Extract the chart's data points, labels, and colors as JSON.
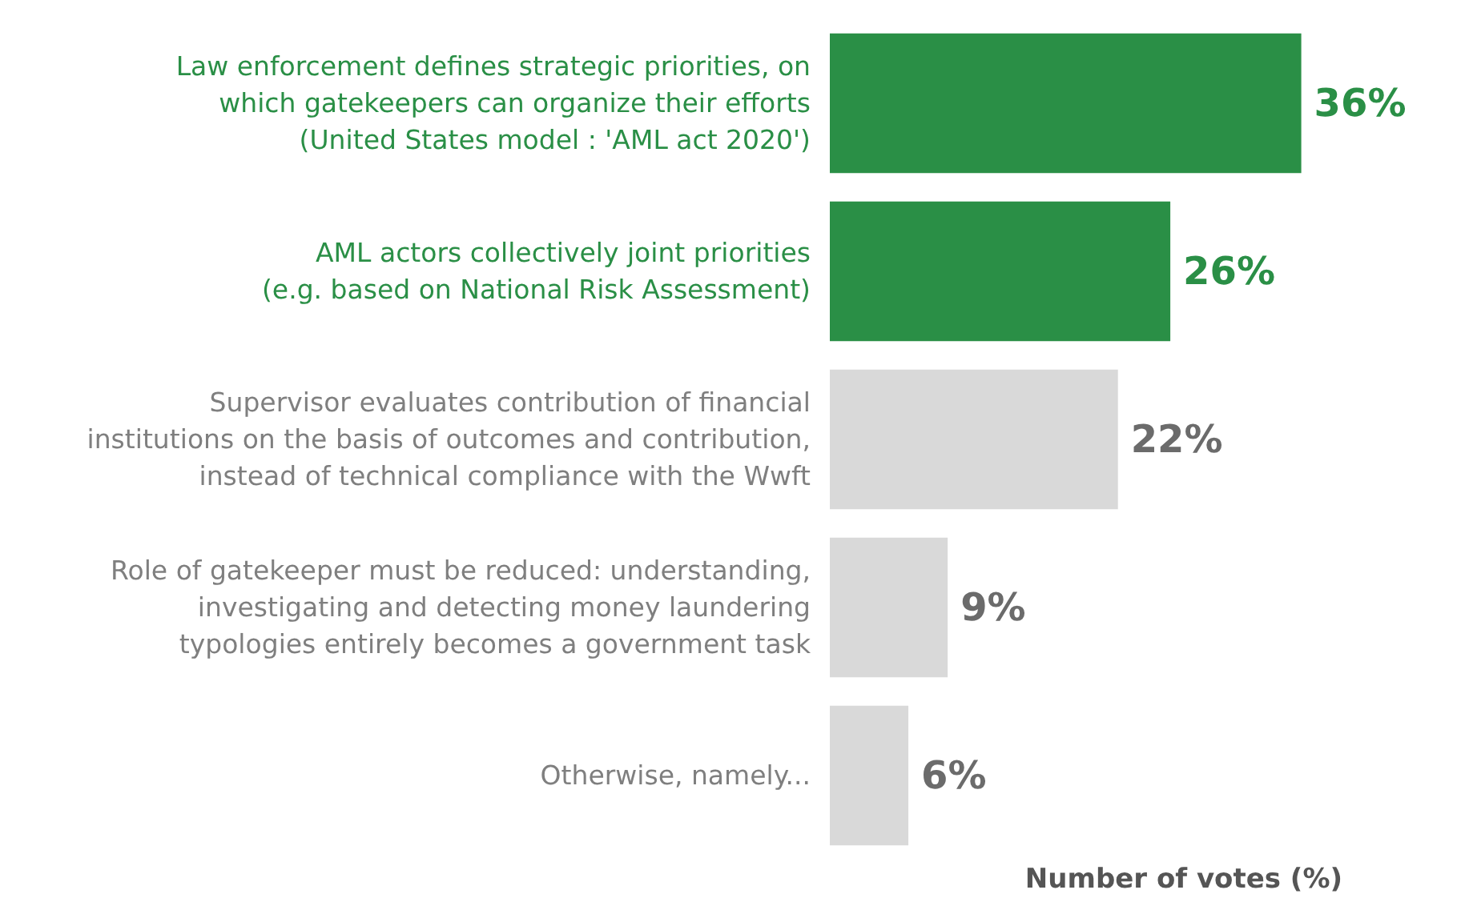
{
  "chart_data": {
    "type": "bar",
    "orientation": "horizontal",
    "xlabel": "Number of votes (%)",
    "categories": [
      "Law enforcement defines strategic priorities, on\nwhich gatekeepers can organize their efforts\n(United States model : 'AML act 2020')",
      "AML actors collectively joint priorities\n(e.g. based on National Risk Assessment)",
      "Supervisor evaluates contribution of financial\ninstitutions on the basis of outcomes and contribution,\ninstead of technical compliance with the Wwft",
      "Role of gatekeeper must be reduced: understanding,\ninvestigating and detecting money laundering\ntypologies entirely becomes a government task",
      "Otherwise, namely..."
    ],
    "values": [
      36,
      26,
      22,
      9,
      6
    ],
    "colors": [
      "#2a8f46",
      "#2a8f46",
      "#d9d9d9",
      "#d9d9d9",
      "#d9d9d9"
    ],
    "value_labels": [
      "36%",
      "26%",
      "22%",
      "9%",
      "6%"
    ],
    "grid": false
  }
}
